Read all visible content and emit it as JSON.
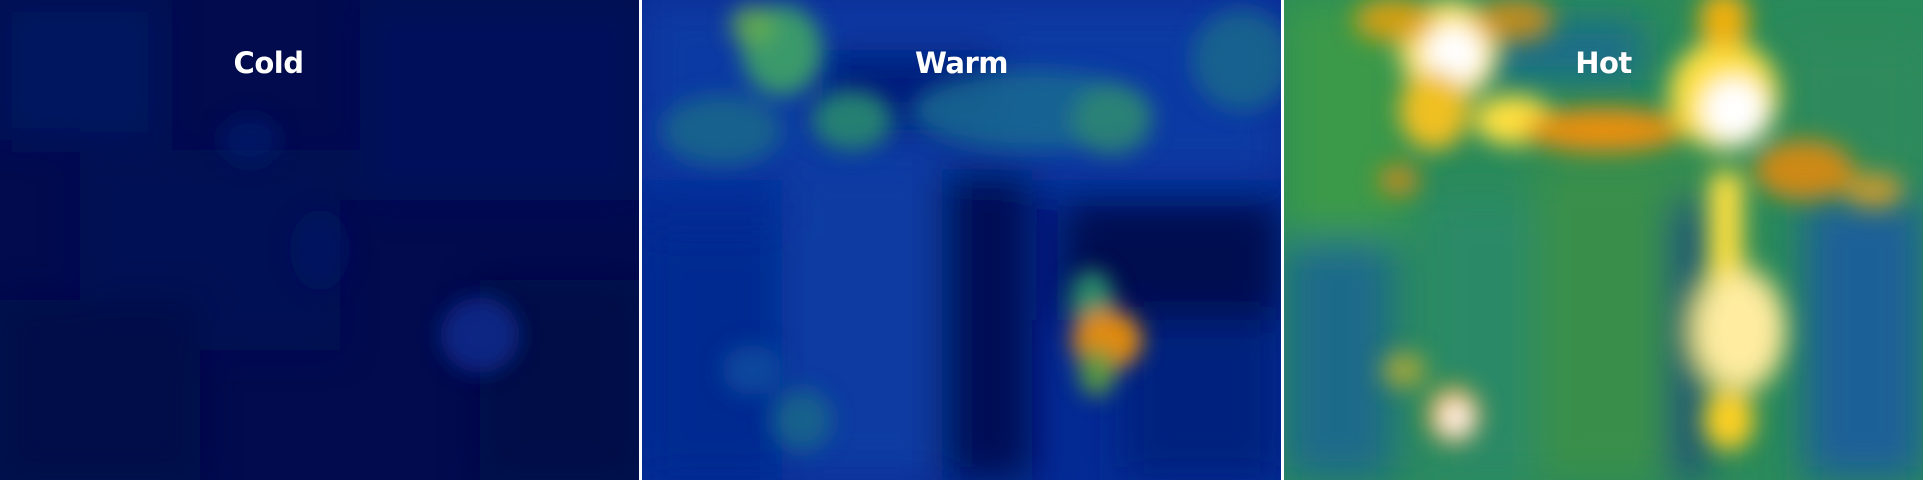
{
  "panels": [
    {
      "id": "cold",
      "label": "Cold"
    },
    {
      "id": "warm",
      "label": "Warm"
    },
    {
      "id": "hot",
      "label": "Hot"
    }
  ],
  "colormap": [
    "#000a4a",
    "#002a9a",
    "#1a8a7a",
    "#e0a000",
    "#ffffff"
  ]
}
